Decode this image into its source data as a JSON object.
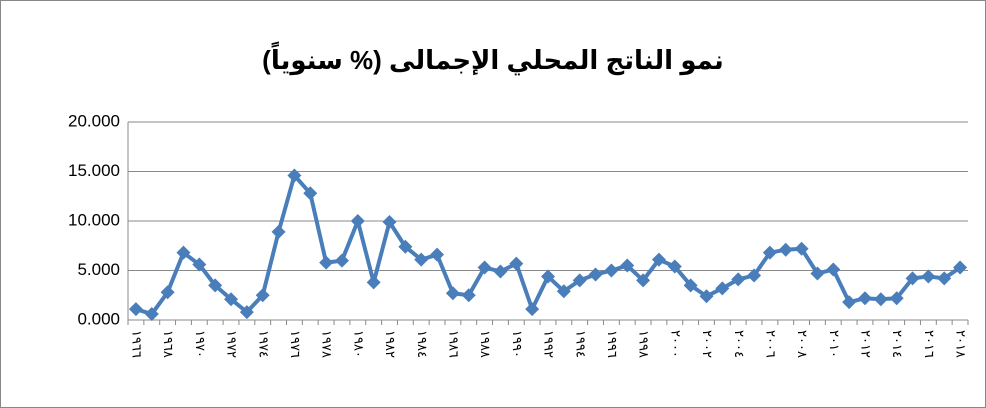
{
  "chart_data": {
    "type": "line",
    "title": "نمو الناتج المحلي الإجمالى (% سنوياً)",
    "categories": [
      "١٩٦٦",
      null,
      "١٩٦٨",
      null,
      "١٩٧٠",
      null,
      "١٩٧٢",
      null,
      "١٩٧٤",
      null,
      "١٩٧٦",
      null,
      "١٩٧٨",
      null,
      "١٩٨٠",
      null,
      "١٩٨٢",
      null,
      "١٩٨٤",
      null,
      "١٩٨٦",
      null,
      "١٩٨٨",
      null,
      "١٩٩٠",
      null,
      "١٩٩٢",
      null,
      "١٩٩٤",
      null,
      "١٩٩٦",
      null,
      "١٩٩٨",
      null,
      "٢٠٠٠",
      null,
      "٢٠٠٢",
      null,
      "٢٠٠٤",
      null,
      "٢٠٠٦",
      null,
      "٢٠٠٨",
      null,
      "٢٠١٠",
      null,
      "٢٠١٢",
      null,
      "٢٠١٤",
      null,
      "٢٠١٦",
      null,
      "٢٠١٨"
    ],
    "series": [
      {
        "color": "#4a7ebb",
        "values": [
          1.1,
          0.6,
          2.8,
          6.8,
          5.6,
          3.5,
          2.1,
          0.8,
          2.5,
          8.9,
          14.6,
          12.8,
          5.8,
          6.0,
          10.0,
          3.8,
          9.9,
          7.4,
          6.1,
          6.6,
          2.7,
          2.5,
          5.3,
          4.9,
          5.7,
          1.1,
          4.4,
          2.9,
          4.0,
          4.6,
          5.0,
          5.5,
          4.0,
          6.1,
          5.4,
          3.5,
          2.4,
          3.2,
          4.1,
          4.5,
          6.8,
          7.1,
          7.2,
          4.7,
          5.1,
          1.8,
          2.2,
          2.1,
          2.2,
          4.2,
          4.4,
          4.2,
          5.3
        ]
      }
    ],
    "ylim": [
      0,
      20
    ],
    "yticks": [
      {
        "value": 0,
        "label": "0.000"
      },
      {
        "value": 5,
        "label": "5.000"
      },
      {
        "value": 10,
        "label": "10.000"
      },
      {
        "value": 15,
        "label": "15.000"
      },
      {
        "value": 20,
        "label": "20.000"
      }
    ],
    "grid": true
  }
}
